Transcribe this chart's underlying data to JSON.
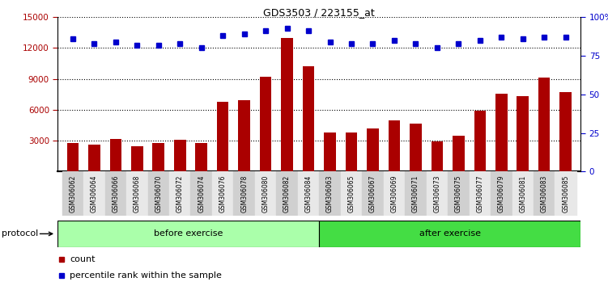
{
  "title": "GDS3503 / 223155_at",
  "samples": [
    "GSM306062",
    "GSM306064",
    "GSM306066",
    "GSM306068",
    "GSM306070",
    "GSM306072",
    "GSM306074",
    "GSM306076",
    "GSM306078",
    "GSM306080",
    "GSM306082",
    "GSM306084",
    "GSM306063",
    "GSM306065",
    "GSM306067",
    "GSM306069",
    "GSM306071",
    "GSM306073",
    "GSM306075",
    "GSM306077",
    "GSM306079",
    "GSM306081",
    "GSM306083",
    "GSM306085"
  ],
  "counts": [
    2800,
    2600,
    3200,
    2500,
    2800,
    3100,
    2800,
    6800,
    6900,
    9200,
    13000,
    10200,
    3800,
    3800,
    4200,
    5000,
    4700,
    2900,
    3500,
    5900,
    7600,
    7300,
    9100,
    7700
  ],
  "percentile_ranks": [
    86,
    83,
    84,
    82,
    82,
    83,
    80,
    88,
    89,
    91,
    93,
    91,
    84,
    83,
    83,
    85,
    83,
    80,
    83,
    85,
    87,
    86,
    87,
    87
  ],
  "n_before": 12,
  "n_after": 12,
  "ylim_left": [
    0,
    15000
  ],
  "ylim_right": [
    0,
    100
  ],
  "yticks_left": [
    3000,
    6000,
    9000,
    12000,
    15000
  ],
  "yticks_right": [
    0,
    25,
    50,
    75,
    100
  ],
  "ytick_right_labels": [
    "0",
    "25",
    "50",
    "75",
    "100%"
  ],
  "bar_color": "#AA0000",
  "dot_color": "#0000CC",
  "before_color": "#AAFFAA",
  "after_color": "#44DD44",
  "protocol_label": "protocol",
  "before_label": "before exercise",
  "after_label": "after exercise",
  "legend_count": "count",
  "legend_pct": "percentile rank within the sample"
}
